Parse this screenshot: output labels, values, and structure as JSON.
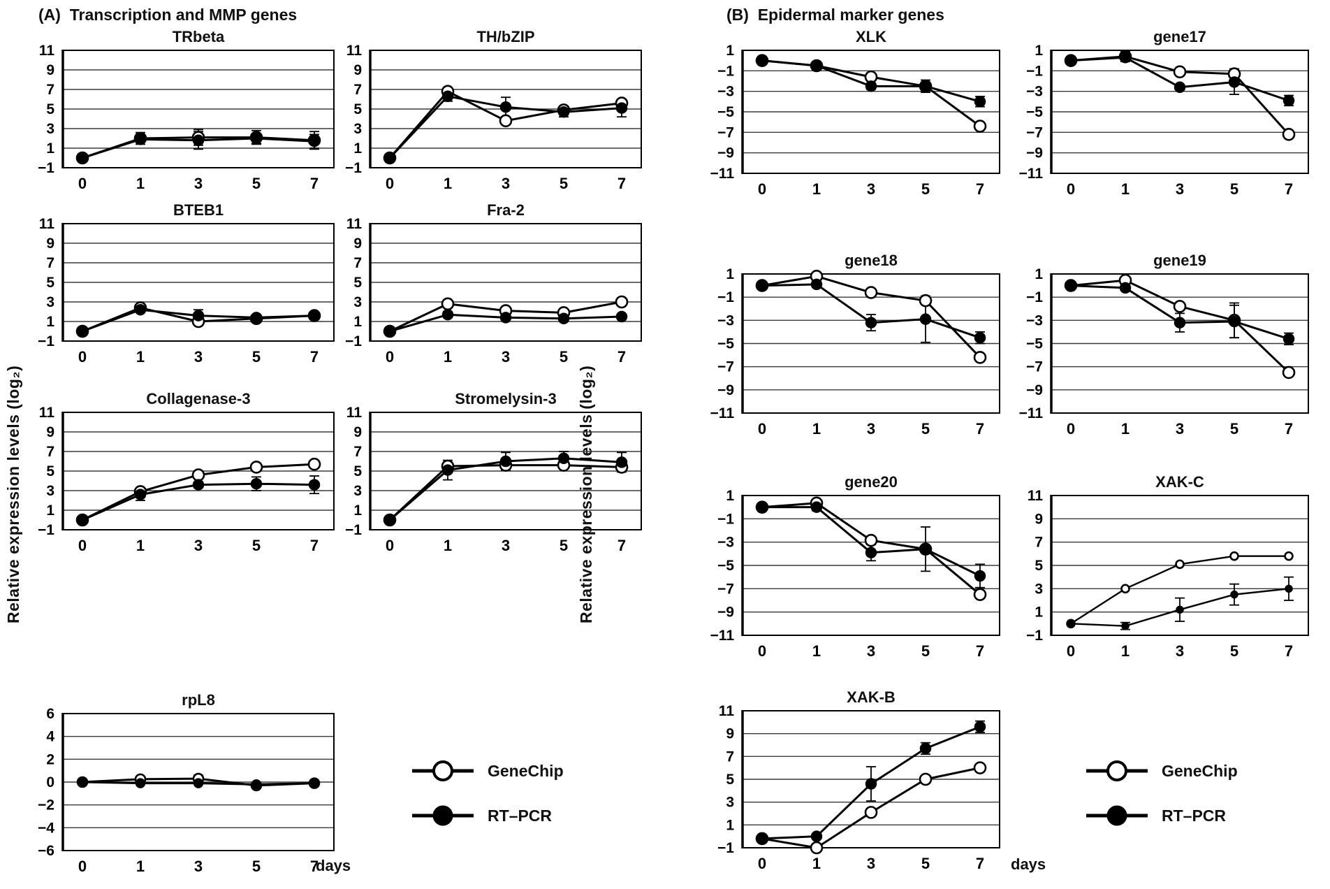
{
  "figure": {
    "panel_a_title": "(A)  Transcription and MMP genes",
    "panel_b_title": "(B)  Epidermal marker genes",
    "y_axis_label": "Relative expression levels (log₂)",
    "x_axis_unit": "days",
    "colors": {
      "line": "#000000",
      "background": "#ffffff",
      "grid": "#3a3a3a"
    }
  },
  "legend": {
    "position": "below-each-panel",
    "items": [
      {
        "label": "GeneChip",
        "marker": "open-circle"
      },
      {
        "label": "RT–PCR",
        "marker": "filled-circle"
      }
    ]
  },
  "chart_data": [
    {
      "id": "trbeta",
      "panel": "A",
      "title": "TRbeta",
      "type": "line",
      "x": [
        0,
        1,
        3,
        5,
        7
      ],
      "yticks": [
        11,
        9,
        7,
        5,
        3,
        1,
        -1
      ],
      "ylim": [
        -1,
        11
      ],
      "grid": true,
      "series": [
        {
          "name": "GeneChip",
          "marker": "open",
          "values": [
            0,
            2.0,
            2.1,
            2.1,
            1.8
          ],
          "errors": [
            0,
            0.6,
            0.8,
            0.7,
            0.9
          ]
        },
        {
          "name": "RT-PCR",
          "marker": "filled",
          "values": [
            0,
            1.9,
            1.8,
            2.0,
            1.7
          ],
          "errors": [
            0,
            0.3,
            0.9,
            0.5,
            0.7
          ]
        }
      ]
    },
    {
      "id": "thbzip",
      "panel": "A",
      "title": "TH/bZIP",
      "type": "line",
      "x": [
        0,
        1,
        3,
        5,
        7
      ],
      "yticks": [
        11,
        9,
        7,
        5,
        3,
        1,
        -1
      ],
      "ylim": [
        -1,
        11
      ],
      "grid": true,
      "series": [
        {
          "name": "GeneChip",
          "marker": "open",
          "values": [
            0,
            6.8,
            3.8,
            4.9,
            5.6
          ],
          "errors": [
            0,
            0.3,
            0,
            0.4,
            0
          ]
        },
        {
          "name": "RT-PCR",
          "marker": "filled",
          "values": [
            0,
            6.3,
            5.2,
            4.7,
            5.1
          ],
          "errors": [
            0,
            0.5,
            1.0,
            0.5,
            0.9
          ]
        }
      ]
    },
    {
      "id": "bteb1",
      "panel": "A",
      "title": "BTEB1",
      "type": "line",
      "x": [
        0,
        1,
        3,
        5,
        7
      ],
      "yticks": [
        11,
        9,
        7,
        5,
        3,
        1,
        -1
      ],
      "ylim": [
        -1,
        11
      ],
      "grid": true,
      "series": [
        {
          "name": "GeneChip",
          "marker": "open",
          "values": [
            0,
            2.4,
            1.0,
            1.3,
            1.6
          ],
          "errors": [
            0,
            0,
            0,
            0.3,
            0
          ]
        },
        {
          "name": "RT-PCR",
          "marker": "filled",
          "values": [
            0,
            2.2,
            1.6,
            1.4,
            1.6
          ],
          "errors": [
            0,
            0,
            0.6,
            0.3,
            0
          ]
        }
      ]
    },
    {
      "id": "fra2",
      "panel": "A",
      "title": "Fra-2",
      "type": "line",
      "x": [
        0,
        1,
        3,
        5,
        7
      ],
      "yticks": [
        11,
        9,
        7,
        5,
        3,
        1,
        -1
      ],
      "ylim": [
        -1,
        11
      ],
      "grid": true,
      "series": [
        {
          "name": "GeneChip",
          "marker": "open",
          "values": [
            0,
            2.8,
            2.1,
            1.9,
            3.0
          ],
          "errors": [
            0,
            0.2,
            0,
            0,
            0
          ]
        },
        {
          "name": "RT-PCR",
          "marker": "filled",
          "values": [
            0,
            1.7,
            1.4,
            1.3,
            1.5
          ],
          "errors": [
            0,
            0.3,
            0.2,
            0.2,
            0.2
          ]
        }
      ]
    },
    {
      "id": "collagenase3",
      "panel": "A",
      "title": "Collagenase-3",
      "type": "line",
      "x": [
        0,
        1,
        3,
        5,
        7
      ],
      "yticks": [
        11,
        9,
        7,
        5,
        3,
        1,
        -1
      ],
      "ylim": [
        -1,
        11
      ],
      "grid": true,
      "series": [
        {
          "name": "GeneChip",
          "marker": "open",
          "values": [
            0,
            2.9,
            4.6,
            5.4,
            5.7
          ],
          "errors": [
            0,
            0.4,
            0,
            0,
            0
          ]
        },
        {
          "name": "RT-PCR",
          "marker": "filled",
          "values": [
            0,
            2.6,
            3.6,
            3.7,
            3.6
          ],
          "errors": [
            0,
            0.6,
            0.3,
            0.7,
            0.9
          ]
        }
      ]
    },
    {
      "id": "stromelysin3",
      "panel": "A",
      "title": "Stromelysin-3",
      "type": "line",
      "x": [
        0,
        1,
        3,
        5,
        7
      ],
      "yticks": [
        11,
        9,
        7,
        5,
        3,
        1,
        -1
      ],
      "ylim": [
        -1,
        11
      ],
      "grid": true,
      "series": [
        {
          "name": "GeneChip",
          "marker": "open",
          "values": [
            0,
            5.5,
            5.6,
            5.6,
            5.4
          ],
          "errors": [
            0,
            0.4,
            0,
            0.4,
            0
          ]
        },
        {
          "name": "RT-PCR",
          "marker": "filled",
          "values": [
            0,
            5.1,
            6.0,
            6.3,
            5.9
          ],
          "errors": [
            0,
            1.0,
            0.9,
            0.7,
            1.0
          ]
        }
      ]
    },
    {
      "id": "rpl8",
      "panel": "A",
      "title": "rpL8",
      "type": "line",
      "x": [
        0,
        1,
        3,
        5,
        7
      ],
      "yticks": [
        6,
        4,
        2,
        0,
        -2,
        -4,
        -6
      ],
      "ylim": [
        -6,
        6
      ],
      "grid": true,
      "series": [
        {
          "name": "GeneChip",
          "marker": "open",
          "values": [
            0,
            0.25,
            0.3,
            -0.3,
            -0.1
          ],
          "errors": [
            0,
            0.1,
            0.3,
            0.15,
            0.25
          ]
        },
        {
          "name": "RT-PCR",
          "marker": "filled",
          "values": [
            0,
            -0.1,
            -0.1,
            -0.2,
            -0.1
          ],
          "errors": [
            0,
            0.1,
            0.1,
            0.1,
            0.1
          ]
        }
      ]
    },
    {
      "id": "xlk",
      "panel": "B",
      "title": "XLK",
      "type": "line",
      "x": [
        0,
        1,
        3,
        5,
        7
      ],
      "yticks": [
        1,
        -1,
        -3,
        -5,
        -7,
        -9,
        -11
      ],
      "ylim": [
        -11,
        1
      ],
      "grid": true,
      "series": [
        {
          "name": "GeneChip",
          "marker": "open",
          "values": [
            0,
            -0.5,
            -1.6,
            -2.5,
            -6.4
          ],
          "errors": [
            0,
            0,
            0,
            0.6,
            0
          ]
        },
        {
          "name": "RT-PCR",
          "marker": "filled",
          "values": [
            0,
            -0.5,
            -2.5,
            -2.5,
            -4.0
          ],
          "errors": [
            0,
            0,
            0.3,
            0.4,
            0.5
          ]
        }
      ]
    },
    {
      "id": "gene17",
      "panel": "B",
      "title": "gene17",
      "type": "line",
      "x": [
        0,
        1,
        3,
        5,
        7
      ],
      "yticks": [
        1,
        -1,
        -3,
        -5,
        -7,
        -9,
        -11
      ],
      "ylim": [
        -11,
        1
      ],
      "grid": true,
      "series": [
        {
          "name": "GeneChip",
          "marker": "open",
          "values": [
            0,
            0.4,
            -1.1,
            -1.3,
            -7.2
          ],
          "errors": [
            0,
            0.5,
            0,
            0.5,
            0
          ]
        },
        {
          "name": "RT-PCR",
          "marker": "filled",
          "values": [
            0,
            0.3,
            -2.6,
            -2.1,
            -3.9
          ],
          "errors": [
            0,
            0.4,
            0,
            1.2,
            0.5
          ]
        }
      ]
    },
    {
      "id": "gene18",
      "panel": "B",
      "title": "gene18",
      "type": "line",
      "x": [
        0,
        1,
        3,
        5,
        7
      ],
      "yticks": [
        1,
        -1,
        -3,
        -5,
        -7,
        -9,
        -11
      ],
      "ylim": [
        -11,
        1
      ],
      "grid": true,
      "series": [
        {
          "name": "GeneChip",
          "marker": "open",
          "values": [
            0,
            0.8,
            -0.6,
            -1.3,
            -6.2
          ],
          "errors": [
            0,
            0,
            0,
            0,
            0
          ]
        },
        {
          "name": "RT-PCR",
          "marker": "filled",
          "values": [
            0,
            0.1,
            -3.2,
            -2.9,
            -4.5
          ],
          "errors": [
            0,
            0,
            0.7,
            2.0,
            0.5
          ]
        }
      ]
    },
    {
      "id": "gene19",
      "panel": "B",
      "title": "gene19",
      "type": "line",
      "x": [
        0,
        1,
        3,
        5,
        7
      ],
      "yticks": [
        1,
        -1,
        -3,
        -5,
        -7,
        -9,
        -11
      ],
      "ylim": [
        -11,
        1
      ],
      "grid": true,
      "series": [
        {
          "name": "GeneChip",
          "marker": "open",
          "values": [
            0,
            0.45,
            -1.8,
            -3.0,
            -7.5
          ],
          "errors": [
            0,
            0,
            0,
            1.5,
            0
          ]
        },
        {
          "name": "RT-PCR",
          "marker": "filled",
          "values": [
            0,
            -0.2,
            -3.2,
            -3.1,
            -4.6
          ],
          "errors": [
            0,
            0,
            0.8,
            1.4,
            0.5
          ]
        }
      ]
    },
    {
      "id": "gene20",
      "panel": "B",
      "title": "gene20",
      "type": "line",
      "x": [
        0,
        1,
        3,
        5,
        7
      ],
      "yticks": [
        1,
        -1,
        -3,
        -5,
        -7,
        -9,
        -11
      ],
      "ylim": [
        -11,
        1
      ],
      "grid": true,
      "series": [
        {
          "name": "GeneChip",
          "marker": "open",
          "values": [
            0,
            0.35,
            -2.85,
            -3.6,
            -7.5
          ],
          "errors": [
            0,
            0,
            0,
            1.9,
            0
          ]
        },
        {
          "name": "RT-PCR",
          "marker": "filled",
          "values": [
            0,
            0,
            -3.9,
            -3.6,
            -5.9
          ],
          "errors": [
            0,
            0.3,
            0.7,
            0,
            1.0
          ]
        }
      ]
    },
    {
      "id": "xakc",
      "panel": "B",
      "title": "XAK-C",
      "type": "line",
      "x": [
        0,
        1,
        3,
        5,
        7
      ],
      "yticks": [
        11,
        9,
        7,
        5,
        3,
        1,
        -1
      ],
      "ylim": [
        -1,
        11
      ],
      "grid": true,
      "series": [
        {
          "name": "GeneChip",
          "marker": "open",
          "values": [
            0,
            3.0,
            5.1,
            5.8,
            5.8
          ],
          "errors": [
            0,
            0,
            0,
            0,
            0
          ]
        },
        {
          "name": "RT-PCR",
          "marker": "filled",
          "values": [
            0,
            -0.2,
            1.2,
            2.5,
            3.0
          ],
          "errors": [
            0,
            0.3,
            1.0,
            0.9,
            1.0
          ]
        }
      ]
    },
    {
      "id": "xakb",
      "panel": "B",
      "title": "XAK-B",
      "type": "line",
      "x": [
        0,
        1,
        3,
        5,
        7
      ],
      "yticks": [
        11,
        9,
        7,
        5,
        3,
        1,
        -1
      ],
      "ylim": [
        -1,
        11
      ],
      "grid": true,
      "series": [
        {
          "name": "GeneChip",
          "marker": "open",
          "values": [
            -0.2,
            -1.0,
            2.1,
            5.0,
            6.0
          ],
          "errors": [
            0,
            0,
            0,
            0,
            0
          ]
        },
        {
          "name": "RT-PCR",
          "marker": "filled",
          "values": [
            -0.2,
            0,
            4.6,
            7.7,
            9.6
          ],
          "errors": [
            0,
            0,
            1.5,
            0.5,
            0.5
          ]
        }
      ]
    }
  ]
}
